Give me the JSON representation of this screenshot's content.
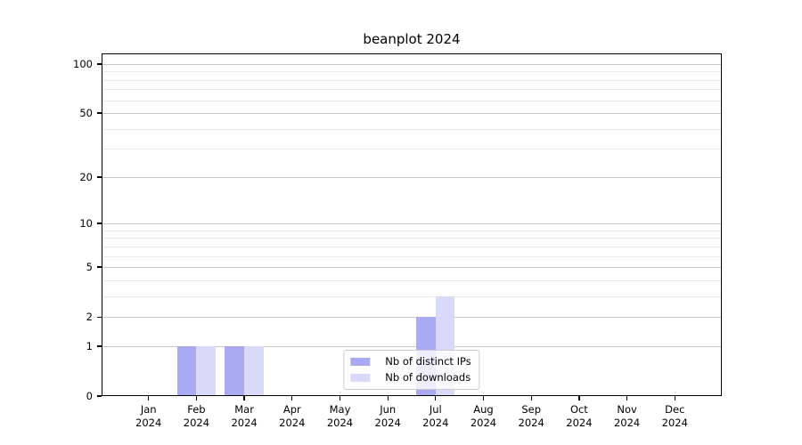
{
  "chart_data": {
    "type": "bar",
    "title": "beanplot 2024",
    "x_categories": [
      "Jan",
      "Feb",
      "Mar",
      "Apr",
      "May",
      "Jun",
      "Jul",
      "Aug",
      "Sep",
      "Oct",
      "Nov",
      "Dec"
    ],
    "x_year": "2024",
    "series": [
      {
        "name": "Nb of distinct IPs",
        "color": "#aaaaf2",
        "values": [
          0,
          1,
          1,
          0,
          0,
          0,
          2,
          0,
          0,
          0,
          0,
          0
        ]
      },
      {
        "name": "Nb of downloads",
        "color": "#d9d9f9",
        "values": [
          0,
          1,
          1,
          0,
          0,
          0,
          3,
          0,
          0,
          0,
          0,
          0
        ]
      }
    ],
    "y_axis": {
      "scale": "log1p",
      "major_ticks": [
        0,
        1,
        2,
        5,
        10,
        20,
        50,
        100
      ],
      "minor_ticks": [
        3,
        4,
        6,
        7,
        8,
        9,
        30,
        40,
        60,
        70,
        80,
        90
      ],
      "ylim": [
        0,
        116
      ]
    },
    "legend": {
      "position": "lower center",
      "entries": [
        "Nb of distinct IPs",
        "Nb of downloads"
      ]
    },
    "grid": true,
    "colors": {
      "major_grid": "#c6c6c6",
      "minor_grid": "#eaeaea",
      "spine": "#000000",
      "background": "#ffffff"
    }
  }
}
